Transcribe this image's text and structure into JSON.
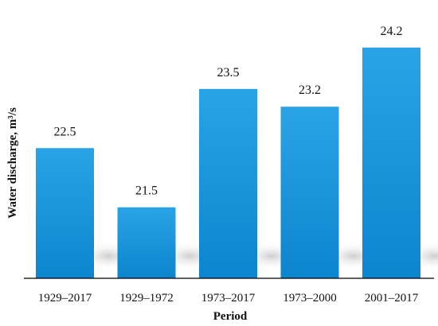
{
  "chart_data": {
    "type": "bar",
    "categories": [
      "1929–2017",
      "1929–1972",
      "1973–2017",
      "1973–2000",
      "2001–2017"
    ],
    "values": [
      22.5,
      21.5,
      23.5,
      23.2,
      24.2
    ],
    "data_labels": [
      "22.5",
      "21.5",
      "23.5",
      "23.2",
      "24.2"
    ],
    "xlabel": "Period",
    "ylabel": "Water discharge, m³/s",
    "ylim": [
      20.3,
      24.6
    ],
    "grid": false,
    "legend": "none",
    "colors": {
      "bar_top": "#2aa3e6",
      "bar_bottom": "#0c85cf",
      "axis": "#000000",
      "shadow": "#cfcfcf"
    }
  }
}
